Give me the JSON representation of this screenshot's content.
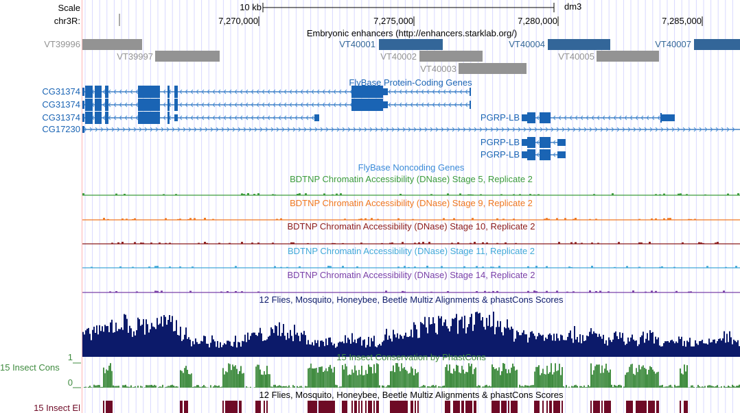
{
  "ruler": {
    "scale_label": "Scale",
    "chrom_label": "chr3R:",
    "scale_bar": "10 kb",
    "assembly": "dm3",
    "ticks": [
      "7,270,000",
      "7,275,000",
      "7,280,000",
      "7,285,000"
    ]
  },
  "enhancers": {
    "title": "Embryonic enhancers (http://enhancers.starklab.org/)",
    "items": [
      {
        "name": "VT39996",
        "active": false
      },
      {
        "name": "VT39997",
        "active": false
      },
      {
        "name": "VT40001",
        "active": true
      },
      {
        "name": "VT40002",
        "active": false
      },
      {
        "name": "VT40003",
        "active": false
      },
      {
        "name": "VT40004",
        "active": true
      },
      {
        "name": "VT40005",
        "active": false
      },
      {
        "name": "VT40007",
        "active": true
      }
    ]
  },
  "genes": {
    "title": "FlyBase Protein-Coding Genes",
    "items": [
      "CG31374",
      "CG31374",
      "CG31374",
      "CG17230",
      "PGRP-LB",
      "PGRP-LB",
      "PGRP-LB"
    ]
  },
  "noncoding": {
    "title": "FlyBase Noncoding Genes"
  },
  "dnase": [
    {
      "label": "BDTNP Chromatin Accessibility (DNase) Stage 5, Replicate 2",
      "color": "#3c9c3c"
    },
    {
      "label": "BDTNP Chromatin Accessibility (DNase) Stage 9, Replicate 2",
      "color": "#f07820"
    },
    {
      "label": "BDTNP Chromatin Accessibility (DNase) Stage 10, Replicate 2",
      "color": "#8b1a1a"
    },
    {
      "label": "BDTNP Chromatin Accessibility (DNase) Stage 11, Replicate 2",
      "color": "#40a8d8"
    },
    {
      "label": "BDTNP Chromatin Accessibility (DNase) Stage 14, Replicate 2",
      "color": "#7a40a8"
    }
  ],
  "multiz": {
    "title": "12 Flies, Mosquito, Honeybee, Beetle Multiz Alignments & phastCons Scores",
    "color": "#0c1a6a"
  },
  "cons": {
    "title": "15 Insect Conservation by PhastCons",
    "side_label": "15 Insect Cons",
    "ymax": "1",
    "ymin": "0",
    "color": "#3d8a3d"
  },
  "elements": {
    "title": "12 Flies, Mosquito, Honeybee, Beetle Multiz Alignments & phastCons Scores",
    "side_label": "15 Insect El",
    "color": "#6e0a26"
  },
  "colors": {
    "gene": "#1a64b4",
    "enh_active": "#336699",
    "enh_inactive": "#939393"
  }
}
